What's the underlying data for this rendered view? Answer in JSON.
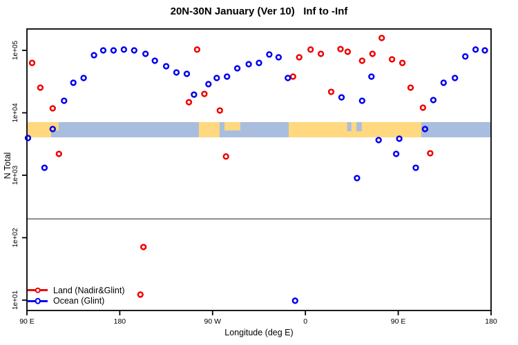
{
  "title": "20N-30N January (Ver 10)   Inf to -Inf",
  "colors": {
    "land_series": "#EE0000",
    "ocean_series": "#0000EE",
    "band_land": "#FFD87F",
    "band_ocean": "#A9BDDE",
    "threshold_line": "#888888",
    "axis": "#000000"
  },
  "chart_data": {
    "type": "scatter",
    "title": "20N-30N January (Ver 10)   Inf to -Inf",
    "xlabel": "Longitude (deg E)",
    "ylabel": "N Total",
    "x_axis": {
      "description": "longitude shown from 90E eastward over 450 degrees (wraps past dateline and prime meridian)",
      "xlim": [
        90,
        540
      ],
      "tick_positions_deg": [
        90,
        180,
        270,
        360,
        450,
        540
      ],
      "tick_labels": [
        "90 E",
        "180",
        "90 W",
        "0",
        "90 E",
        "180"
      ]
    },
    "y_axis": {
      "scale": "log10",
      "ylim_approx": [
        7,
        220000
      ],
      "tick_values": [
        100000,
        10000,
        1000,
        100,
        10
      ],
      "tick_labels": [
        "1e+05",
        "1e+04",
        "1e+03",
        "1e+02",
        "1e+01"
      ]
    },
    "grid": false,
    "threshold_line_n": 200,
    "map_band": {
      "description": "land/ocean strip for the 20N-30N latitude band drawn across the plot",
      "n_top": 7100,
      "n_bottom": 4050,
      "land_segments_deg": [
        {
          "from": 90,
          "to": 120.8,
          "v0": 0,
          "v1": 1
        },
        {
          "from": 256.7,
          "to": 276.8,
          "v0": 0,
          "v1": 1
        },
        {
          "from": 281.5,
          "to": 296.9,
          "v0": 0,
          "v1": 0.55
        },
        {
          "from": 343.8,
          "to": 472.3,
          "v0": 0,
          "v1": 1
        }
      ],
      "ocean_slivers_deg": [
        {
          "from": 113.5,
          "to": 120.8,
          "v0": 0.55,
          "v1": 1
        },
        {
          "from": 400.5,
          "to": 404.5,
          "v0": 0,
          "v1": 0.6
        },
        {
          "from": 409.5,
          "to": 414.5,
          "v0": 0,
          "v1": 0.6
        }
      ]
    },
    "series": [
      {
        "name": "Land (Nadir&Glint)",
        "color_key": "land_series",
        "marker": "open-circle",
        "points_lon_n": [
          [
            95,
            63000
          ],
          [
            103,
            25300
          ],
          [
            115,
            11800
          ],
          [
            121,
            2200
          ],
          [
            200,
            12.3
          ],
          [
            203,
            71
          ],
          [
            247,
            14800
          ],
          [
            255,
            103000
          ],
          [
            262,
            20100
          ],
          [
            277,
            10900
          ],
          [
            283,
            2000
          ],
          [
            348,
            38000
          ],
          [
            354,
            77500
          ],
          [
            365,
            103000
          ],
          [
            375,
            88000
          ],
          [
            385,
            21700
          ],
          [
            394,
            105000
          ],
          [
            401,
            95000
          ],
          [
            415,
            68300
          ],
          [
            425,
            88000
          ],
          [
            434,
            158000
          ],
          [
            444,
            71800
          ],
          [
            454,
            63000
          ],
          [
            462,
            25300
          ],
          [
            474,
            12100
          ],
          [
            481,
            2250
          ]
        ]
      },
      {
        "name": "Ocean (Glint)",
        "color_key": "ocean_series",
        "marker": "open-circle",
        "points_lon_n": [
          [
            91,
            3950
          ],
          [
            107,
            1320
          ],
          [
            115,
            5500
          ],
          [
            126,
            15600
          ],
          [
            135,
            30300
          ],
          [
            145,
            36100
          ],
          [
            155,
            83700
          ],
          [
            164,
            100000
          ],
          [
            174,
            100000
          ],
          [
            184,
            103000
          ],
          [
            194,
            100000
          ],
          [
            205,
            88000
          ],
          [
            214,
            68300
          ],
          [
            225,
            55700
          ],
          [
            235,
            44300
          ],
          [
            245,
            42100
          ],
          [
            252,
            19600
          ],
          [
            266,
            28800
          ],
          [
            274,
            36100
          ],
          [
            284,
            38000
          ],
          [
            294,
            51600
          ],
          [
            305,
            60100
          ],
          [
            315,
            63000
          ],
          [
            325,
            86000
          ],
          [
            334,
            77500
          ],
          [
            343,
            36100
          ],
          [
            350,
            9.8
          ],
          [
            395,
            17700
          ],
          [
            410,
            900
          ],
          [
            415,
            15600
          ],
          [
            424,
            38000
          ],
          [
            431,
            3660
          ],
          [
            448,
            2200
          ],
          [
            451,
            3850
          ],
          [
            467,
            1320
          ],
          [
            476,
            5500
          ],
          [
            484,
            16000
          ],
          [
            494,
            30300
          ],
          [
            505,
            36100
          ],
          [
            515,
            80000
          ],
          [
            525,
            103000
          ],
          [
            534,
            100000
          ]
        ]
      }
    ],
    "legend": {
      "position": "bottom-left",
      "items": [
        {
          "label": "Land (Nadir&Glint)",
          "color_key": "land_series"
        },
        {
          "label": "Ocean (Glint)",
          "color_key": "ocean_series"
        }
      ]
    }
  }
}
